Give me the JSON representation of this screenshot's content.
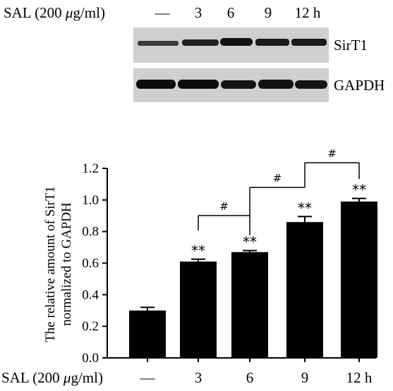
{
  "blot": {
    "row_label_prefix": "SAL (200 ",
    "row_label_mu": "μ",
    "row_label_suffix": "g/ml)",
    "lanes": [
      "—",
      "3",
      "6",
      "9",
      "12 h"
    ],
    "band_labels": [
      "SirT1",
      "GAPDH"
    ]
  },
  "chart_data": {
    "type": "bar",
    "categories": [
      "—",
      "3",
      "6",
      "9",
      "12 h"
    ],
    "values": [
      0.3,
      0.61,
      0.67,
      0.86,
      0.99
    ],
    "errors": [
      0.02,
      0.015,
      0.01,
      0.035,
      0.02
    ],
    "significance": [
      "",
      "**",
      "**",
      "**",
      "**"
    ],
    "xlabel_prefix": "SAL (200 ",
    "xlabel_mu": "μ",
    "xlabel_suffix": "g/ml)",
    "ylabel_line1": "The relative amount of SirT1",
    "ylabel_line2": "normalized to GAPDH",
    "ylim": [
      0,
      1.2
    ],
    "yticks": [
      "0.0",
      "0.2",
      "0.4",
      "0.6",
      "0.8",
      "1.0",
      "1.2"
    ],
    "comparisons": [
      {
        "from": 1,
        "to": 2,
        "label": "#"
      },
      {
        "from": 2,
        "to": 3,
        "label": "#"
      },
      {
        "from": 3,
        "to": 4,
        "label": "#"
      }
    ],
    "bar_color": "#000000"
  }
}
